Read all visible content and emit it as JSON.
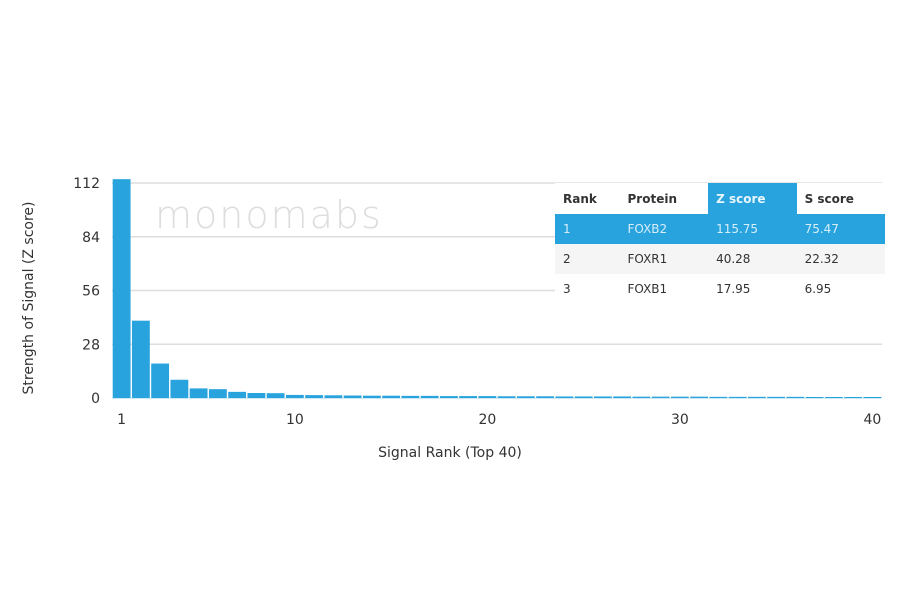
{
  "chart_data": {
    "type": "bar",
    "xlabel": "Signal Rank (Top 40)",
    "ylabel": "Strength of Signal (Z score)",
    "ylim": [
      0,
      112
    ],
    "yticks": [
      0,
      28,
      56,
      84,
      112
    ],
    "xticks": [
      1,
      10,
      20,
      30,
      40
    ],
    "grid": true,
    "color": "#29a3dd",
    "x": [
      1,
      2,
      3,
      4,
      5,
      6,
      7,
      8,
      9,
      10,
      11,
      12,
      13,
      14,
      15,
      16,
      17,
      18,
      19,
      20,
      21,
      22,
      23,
      24,
      25,
      26,
      27,
      28,
      29,
      30,
      31,
      32,
      33,
      34,
      35,
      36,
      37,
      38,
      39,
      40
    ],
    "values": [
      115.75,
      40.28,
      17.95,
      9.5,
      5,
      4.6,
      3.2,
      2.6,
      2.5,
      1.6,
      1.5,
      1.4,
      1.3,
      1.2,
      1.2,
      1.1,
      1.1,
      1.0,
      1.0,
      1.0,
      0.9,
      0.9,
      0.9,
      0.8,
      0.8,
      0.8,
      0.8,
      0.7,
      0.7,
      0.7,
      0.7,
      0.6,
      0.6,
      0.6,
      0.6,
      0.6,
      0.5,
      0.5,
      0.5,
      0.5
    ]
  },
  "watermark": "monomabs",
  "table": {
    "headers": [
      "Rank",
      "Protein",
      "Z score",
      "S score"
    ],
    "rows": [
      [
        "1",
        "FOXB2",
        "115.75",
        "75.47"
      ],
      [
        "2",
        "FOXR1",
        "40.28",
        "22.32"
      ],
      [
        "3",
        "FOXB1",
        "17.95",
        "6.95"
      ]
    ]
  }
}
